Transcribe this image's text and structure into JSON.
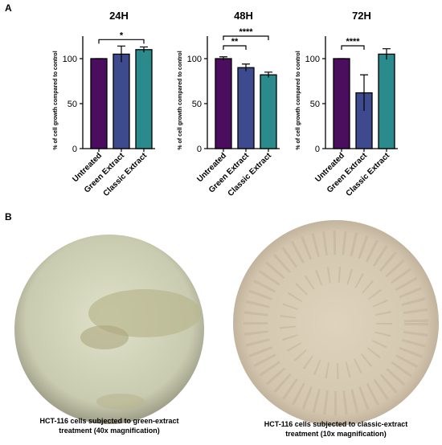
{
  "panel_labels": [
    "A",
    "B"
  ],
  "chart_data": [
    {
      "type": "bar",
      "title": "24H",
      "y_label": "% of cell growth compared to control",
      "categories": [
        "Untreated",
        "Green Extract",
        "Classic Extract"
      ],
      "values": [
        100,
        105,
        110
      ],
      "errors": [
        0,
        9,
        3
      ],
      "colors": [
        "#4b0d5e",
        "#3e4a8e",
        "#2b8a8c"
      ],
      "ylim": [
        0,
        125
      ],
      "yticks": [
        0,
        50,
        100
      ],
      "annotations": [
        {
          "label": "*",
          "between": [
            "Untreated",
            "Classic Extract"
          ]
        }
      ]
    },
    {
      "type": "bar",
      "title": "48H",
      "y_label": "% of cell growth compared to control",
      "categories": [
        "Untreated",
        "Green Extract",
        "Classic Extract"
      ],
      "values": [
        100,
        90,
        82
      ],
      "errors": [
        2,
        4,
        3
      ],
      "colors": [
        "#4b0d5e",
        "#3e4a8e",
        "#2b8a8c"
      ],
      "ylim": [
        0,
        125
      ],
      "yticks": [
        0,
        50,
        100
      ],
      "annotations": [
        {
          "label": "**",
          "between": [
            "Untreated",
            "Green Extract"
          ]
        },
        {
          "label": "****",
          "between": [
            "Untreated",
            "Classic Extract"
          ]
        }
      ]
    },
    {
      "type": "bar",
      "title": "72H",
      "y_label": "% of cell growth compared to control",
      "categories": [
        "Untreated",
        "Green Extract",
        "Classic Extract"
      ],
      "values": [
        100,
        62,
        105
      ],
      "errors": [
        0,
        20,
        6
      ],
      "colors": [
        "#4b0d5e",
        "#3e4a8e",
        "#2b8a8c"
      ],
      "ylim": [
        0,
        125
      ],
      "yticks": [
        0,
        50,
        100
      ],
      "annotations": [
        {
          "label": "****",
          "between": [
            "Untreated",
            "Green Extract"
          ]
        }
      ]
    }
  ],
  "captions": [
    [
      "HCT-116 cells subjected to green-extract",
      "treatment (40x magnification)"
    ],
    [
      "HCT-116 cells subjected to classic-extract",
      "treatment (10x magnification)"
    ]
  ]
}
